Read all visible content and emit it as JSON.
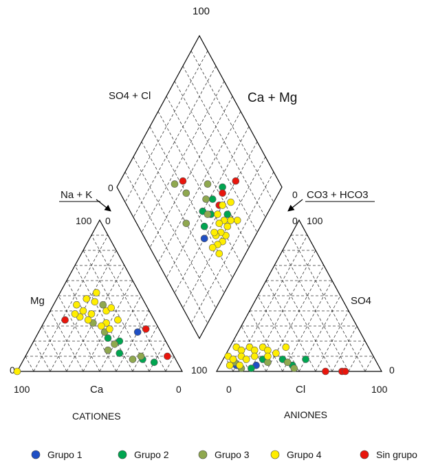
{
  "chart_data": {
    "type": "scatter",
    "labels": {
      "top_100": "100",
      "so4_cl": "SO4 + Cl",
      "ca_mg": "Ca + Mg",
      "na_k": "Na + K",
      "co3_hco3": "CO3 + HCO3",
      "left_100": "100",
      "left_0_top": "0",
      "right_0_top": "0",
      "right_100": "100",
      "mg": "Mg",
      "so4": "SO4",
      "left_0_corner": "0",
      "diamond_0": "0",
      "right_100_corner": "100",
      "right_0_corner": "0",
      "cat_100": "100",
      "ca": "Ca",
      "cat_0": "0",
      "an_0": "0",
      "cl": "Cl",
      "an_100": "100",
      "cationes": "CATIONES",
      "aniones": "ANIONES"
    },
    "series": [
      {
        "name": "Grupo 1",
        "color": "#1f4fc4"
      },
      {
        "name": "Grupo 2",
        "color": "#00a550"
      },
      {
        "name": "Grupo 3",
        "color": "#8fa84f"
      },
      {
        "name": "Grupo 4",
        "color": "#ffee00"
      },
      {
        "name": "Sin grupo",
        "color": "#e8150c"
      }
    ],
    "cations": [
      {
        "mg": 46,
        "na": 24,
        "s": 3
      },
      {
        "mg": 40,
        "na": 34,
        "s": 3
      },
      {
        "mg": 34,
        "na": 44,
        "s": 3
      },
      {
        "mg": 26,
        "na": 60,
        "s": 0
      },
      {
        "mg": 22,
        "na": 44,
        "s": 1
      },
      {
        "mg": 20,
        "na": 52,
        "s": 1
      },
      {
        "mg": 12,
        "na": 56,
        "s": 1
      },
      {
        "mg": 8,
        "na": 72,
        "s": 1
      },
      {
        "mg": 6,
        "na": 80,
        "s": 1
      },
      {
        "mg": 44,
        "na": 30,
        "s": 2
      },
      {
        "mg": 26,
        "na": 40,
        "s": 2
      },
      {
        "mg": 14,
        "na": 48,
        "s": 2
      },
      {
        "mg": 8,
        "na": 66,
        "s": 2
      },
      {
        "mg": 10,
        "na": 70,
        "s": 2
      },
      {
        "mg": 18,
        "na": 50,
        "s": 2
      },
      {
        "mg": 32,
        "na": 30,
        "s": 2
      },
      {
        "mg": 52,
        "na": 22,
        "s": 3
      },
      {
        "mg": 48,
        "na": 18,
        "s": 3
      },
      {
        "mg": 44,
        "na": 14,
        "s": 3
      },
      {
        "mg": 40,
        "na": 20,
        "s": 3
      },
      {
        "mg": 38,
        "na": 26,
        "s": 3
      },
      {
        "mg": 36,
        "na": 20,
        "s": 3
      },
      {
        "mg": 34,
        "na": 26,
        "s": 3
      },
      {
        "mg": 32,
        "na": 38,
        "s": 3
      },
      {
        "mg": 30,
        "na": 36,
        "s": 3
      },
      {
        "mg": 28,
        "na": 42,
        "s": 3
      },
      {
        "mg": 42,
        "na": 36,
        "s": 3
      },
      {
        "mg": 38,
        "na": 16,
        "s": 3
      },
      {
        "mg": 28,
        "na": 64,
        "s": 4
      },
      {
        "mg": 10,
        "na": 86,
        "s": 4
      },
      {
        "mg": 34,
        "na": 12,
        "s": 4
      },
      {
        "mg": 0,
        "na": 0,
        "s": 3
      }
    ],
    "anions": [
      {
        "cl": 10,
        "so4": 4,
        "s": 0
      },
      {
        "cl": 22,
        "so4": 4,
        "s": 0
      },
      {
        "cl": 24,
        "so4": 8,
        "s": 1
      },
      {
        "cl": 20,
        "so4": 2,
        "s": 1
      },
      {
        "cl": 36,
        "so4": 8,
        "s": 1
      },
      {
        "cl": 44,
        "so4": 4,
        "s": 1
      },
      {
        "cl": 50,
        "so4": 8,
        "s": 1
      },
      {
        "cl": 8,
        "so4": 6,
        "s": 2
      },
      {
        "cl": 14,
        "so4": 2,
        "s": 2
      },
      {
        "cl": 28,
        "so4": 6,
        "s": 2
      },
      {
        "cl": 40,
        "so4": 6,
        "s": 2
      },
      {
        "cl": 46,
        "so4": 2,
        "s": 2
      },
      {
        "cl": 2,
        "so4": 10,
        "s": 3
      },
      {
        "cl": 4,
        "so4": 16,
        "s": 3
      },
      {
        "cl": 6,
        "so4": 8,
        "s": 3
      },
      {
        "cl": 8,
        "so4": 14,
        "s": 3
      },
      {
        "cl": 10,
        "so4": 10,
        "s": 3
      },
      {
        "cl": 12,
        "so4": 16,
        "s": 3
      },
      {
        "cl": 14,
        "so4": 8,
        "s": 3
      },
      {
        "cl": 16,
        "so4": 14,
        "s": 3
      },
      {
        "cl": 18,
        "so4": 10,
        "s": 3
      },
      {
        "cl": 20,
        "so4": 16,
        "s": 3
      },
      {
        "cl": 24,
        "so4": 14,
        "s": 3
      },
      {
        "cl": 26,
        "so4": 10,
        "s": 3
      },
      {
        "cl": 30,
        "so4": 12,
        "s": 3
      },
      {
        "cl": 34,
        "so4": 16,
        "s": 3
      },
      {
        "cl": 6,
        "so4": 4,
        "s": 3
      },
      {
        "cl": 12,
        "so4": 4,
        "s": 3
      },
      {
        "cl": 66,
        "so4": 0,
        "s": 4
      },
      {
        "cl": 76,
        "so4": 0,
        "s": 4
      },
      {
        "cl": 78,
        "so4": 0,
        "s": 4
      }
    ],
    "diamond": [
      {
        "a": 74,
        "c": 30,
        "s": 4
      },
      {
        "a": 56,
        "c": 32,
        "s": 4
      },
      {
        "a": 40,
        "c": 34,
        "s": 1
      },
      {
        "a": 36,
        "c": 30,
        "s": 4
      },
      {
        "a": 48,
        "c": 34,
        "s": 1
      },
      {
        "a": 58,
        "c": 24,
        "s": 1
      },
      {
        "a": 44,
        "c": 40,
        "s": 1
      },
      {
        "a": 36,
        "c": 30,
        "s": 0
      },
      {
        "a": 54,
        "c": 38,
        "s": 1
      },
      {
        "a": 64,
        "c": 36,
        "s": 1
      },
      {
        "a": 56,
        "c": 46,
        "s": 2
      },
      {
        "a": 50,
        "c": 42,
        "s": 2
      },
      {
        "a": 40,
        "c": 56,
        "s": 2
      },
      {
        "a": 30,
        "c": 46,
        "s": 2
      },
      {
        "a": 36,
        "c": 66,
        "s": 2
      },
      {
        "a": 46,
        "c": 36,
        "s": 2
      },
      {
        "a": 62,
        "c": 16,
        "s": 3
      },
      {
        "a": 58,
        "c": 20,
        "s": 3
      },
      {
        "a": 54,
        "c": 24,
        "s": 3
      },
      {
        "a": 50,
        "c": 18,
        "s": 3
      },
      {
        "a": 48,
        "c": 22,
        "s": 3
      },
      {
        "a": 46,
        "c": 18,
        "s": 3
      },
      {
        "a": 44,
        "c": 24,
        "s": 3
      },
      {
        "a": 42,
        "c": 20,
        "s": 3
      },
      {
        "a": 40,
        "c": 16,
        "s": 3
      },
      {
        "a": 38,
        "c": 22,
        "s": 3
      },
      {
        "a": 58,
        "c": 30,
        "s": 3
      },
      {
        "a": 52,
        "c": 30,
        "s": 3
      },
      {
        "a": 44,
        "c": 26,
        "s": 3
      },
      {
        "a": 54,
        "c": 20,
        "s": 3
      },
      {
        "a": 50,
        "c": 26,
        "s": 3
      },
      {
        "a": 64,
        "c": 26,
        "s": 3
      },
      {
        "a": 62,
        "c": 34,
        "s": 4
      },
      {
        "a": 42,
        "c": 62,
        "s": 4
      }
    ]
  }
}
